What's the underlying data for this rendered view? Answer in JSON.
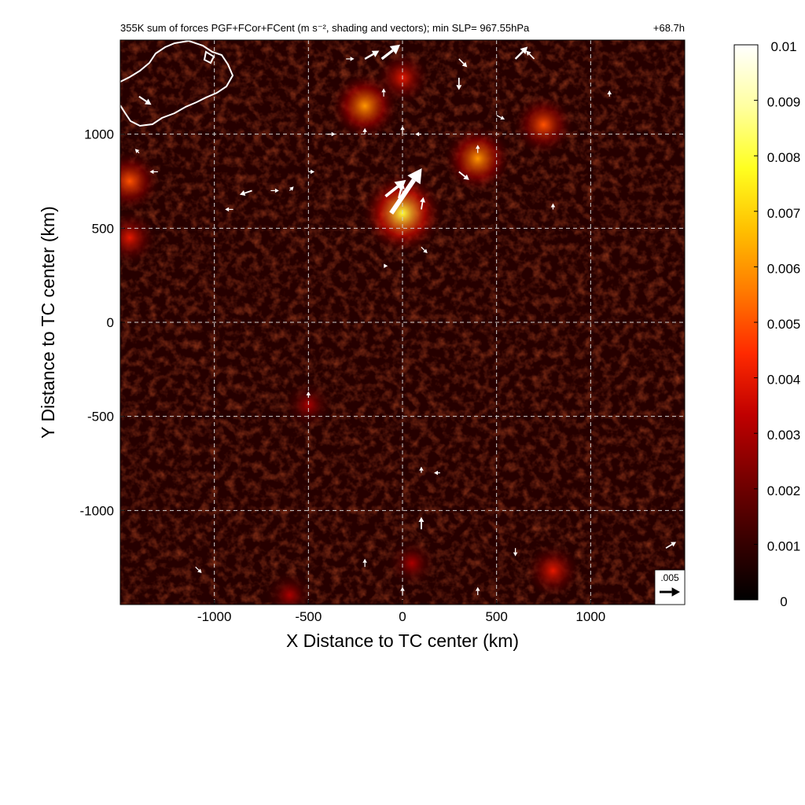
{
  "chart_data": {
    "type": "heatmap",
    "title": "355K sum of forces PGF+FCor+FCent (m s⁻², shading and vectors); min SLP= 967.55hPa",
    "time_label": "+68.7h",
    "xlabel": "X Distance to TC center (km)",
    "ylabel": "Y Distance to TC center (km)",
    "xlim": [
      -1500,
      1500
    ],
    "ylim": [
      -1500,
      1500
    ],
    "xticks": [
      -1000,
      -500,
      0,
      500,
      1000
    ],
    "yticks": [
      -1000,
      -500,
      0,
      500,
      1000
    ],
    "xtick_labels": [
      "-1000",
      "-500",
      "0",
      "500",
      "1000"
    ],
    "ytick_labels": [
      "-1000",
      "-500",
      "0",
      "500",
      "1000"
    ],
    "grid": true,
    "colorbar": {
      "min": 0,
      "max": 0.01,
      "ticks": [
        0,
        0.001,
        0.002,
        0.003,
        0.004,
        0.005,
        0.006,
        0.007,
        0.008,
        0.009,
        0.01
      ],
      "tick_labels": [
        "0",
        "0.001",
        "0.002",
        "0.003",
        "0.004",
        "0.005",
        "0.006",
        "0.007",
        "0.008",
        "0.009",
        "0.01"
      ],
      "colormap": [
        "#000000",
        "#3a0000",
        "#7a0000",
        "#c00000",
        "#ff2a00",
        "#ff7a00",
        "#ffc000",
        "#ffff20",
        "#ffffa0",
        "#ffffff"
      ]
    },
    "reference_vector": {
      "label": ".005",
      "magnitude": 0.005
    },
    "hotspots": [
      {
        "x": 0,
        "y": 580,
        "value": 0.008
      },
      {
        "x": -200,
        "y": 1150,
        "value": 0.006
      },
      {
        "x": 400,
        "y": 870,
        "value": 0.006
      },
      {
        "x": 750,
        "y": 1050,
        "value": 0.005
      },
      {
        "x": -1450,
        "y": 750,
        "value": 0.005
      },
      {
        "x": -1450,
        "y": 450,
        "value": 0.004
      },
      {
        "x": 0,
        "y": 1300,
        "value": 0.004
      },
      {
        "x": 800,
        "y": -1320,
        "value": 0.004
      },
      {
        "x": -600,
        "y": -1450,
        "value": 0.003
      },
      {
        "x": 50,
        "y": -1280,
        "value": 0.003
      },
      {
        "x": -500,
        "y": -440,
        "value": 0.003
      }
    ],
    "vectors": [
      {
        "x": -60,
        "y": 580,
        "u": 0.0075,
        "v": 0.011
      },
      {
        "x": -90,
        "y": 670,
        "u": 0.005,
        "v": 0.004
      },
      {
        "x": -20,
        "y": 660,
        "u": 0.001,
        "v": 0.004
      },
      {
        "x": 100,
        "y": 600,
        "u": 0.0005,
        "v": 0.003
      },
      {
        "x": -110,
        "y": 1400,
        "u": 0.0045,
        "v": 0.0035
      },
      {
        "x": -200,
        "y": 1400,
        "u": 0.0035,
        "v": 0.002
      },
      {
        "x": 300,
        "y": 1400,
        "u": 0.002,
        "v": -0.002
      },
      {
        "x": 600,
        "y": 1400,
        "u": 0.003,
        "v": 0.003
      },
      {
        "x": -300,
        "y": 1400,
        "u": 0.002,
        "v": 0.0
      },
      {
        "x": 300,
        "y": 1300,
        "u": 0.0,
        "v": -0.003
      },
      {
        "x": 700,
        "y": 1400,
        "u": -0.002,
        "v": 0.002
      },
      {
        "x": -100,
        "y": 1200,
        "u": 0.0,
        "v": 0.002
      },
      {
        "x": 500,
        "y": 1100,
        "u": 0.002,
        "v": -0.001
      },
      {
        "x": 300,
        "y": 800,
        "u": 0.0025,
        "v": -0.002
      },
      {
        "x": 400,
        "y": 900,
        "u": 0.0,
        "v": 0.002
      },
      {
        "x": -800,
        "y": 700,
        "u": -0.003,
        "v": -0.001
      },
      {
        "x": -700,
        "y": 700,
        "u": 0.002,
        "v": 0.0
      },
      {
        "x": -600,
        "y": 700,
        "u": 0.001,
        "v": 0.001
      },
      {
        "x": -900,
        "y": 600,
        "u": -0.002,
        "v": 0.0
      },
      {
        "x": -1300,
        "y": 800,
        "u": -0.002,
        "v": 0.0
      },
      {
        "x": -1400,
        "y": 900,
        "u": -0.001,
        "v": 0.001
      },
      {
        "x": -1400,
        "y": 1200,
        "u": 0.003,
        "v": -0.002
      },
      {
        "x": 0,
        "y": 1000,
        "u": 0.0,
        "v": 0.002
      },
      {
        "x": 100,
        "y": 1000,
        "u": -0.0015,
        "v": 0.0
      },
      {
        "x": -200,
        "y": 1000,
        "u": 0.0,
        "v": 0.0015
      },
      {
        "x": -400,
        "y": 1000,
        "u": 0.002,
        "v": 0.0
      },
      {
        "x": -500,
        "y": 800,
        "u": 0.0015,
        "v": 0.0
      },
      {
        "x": 100,
        "y": 400,
        "u": 0.0015,
        "v": -0.0015
      },
      {
        "x": -100,
        "y": 300,
        "u": 0.001,
        "v": 0.0
      },
      {
        "x": 100,
        "y": -1100,
        "u": 0.0,
        "v": 0.003
      },
      {
        "x": -200,
        "y": -1300,
        "u": 0.0,
        "v": 0.002
      },
      {
        "x": 100,
        "y": -800,
        "u": 0.0,
        "v": 0.0015
      },
      {
        "x": 200,
        "y": -800,
        "u": -0.0015,
        "v": 0.0
      },
      {
        "x": 600,
        "y": -1200,
        "u": 0.0,
        "v": -0.002
      },
      {
        "x": 1400,
        "y": -1200,
        "u": 0.0025,
        "v": 0.0015
      },
      {
        "x": -1100,
        "y": -1300,
        "u": 0.0015,
        "v": -0.0015
      },
      {
        "x": 0,
        "y": -1450,
        "u": 0.0,
        "v": 0.002
      },
      {
        "x": 400,
        "y": -1450,
        "u": 0.0,
        "v": 0.002
      },
      {
        "x": -500,
        "y": -400,
        "u": 0.0,
        "v": 0.0015
      },
      {
        "x": 800,
        "y": 600,
        "u": 0.0,
        "v": 0.0015
      },
      {
        "x": 1100,
        "y": 1200,
        "u": 0.0,
        "v": 0.0015
      }
    ]
  }
}
